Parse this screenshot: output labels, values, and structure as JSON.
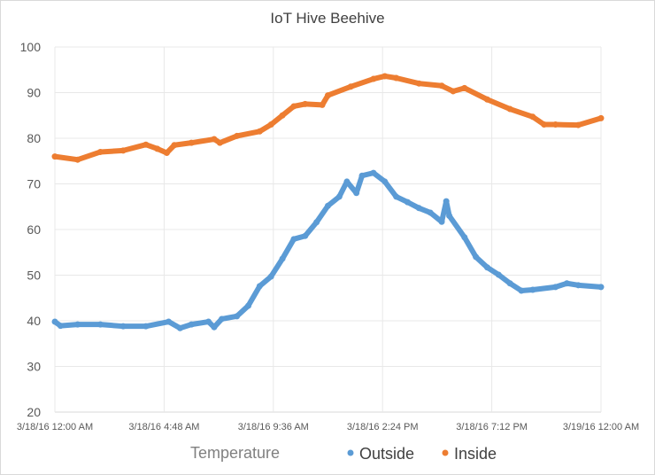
{
  "chart_data": {
    "type": "scatter",
    "title": "IoT Hive Beehive",
    "xlabel": "",
    "ylabel": "",
    "legend_title": "Temperature",
    "legend_position": "bottom",
    "grid": true,
    "ylim": [
      20,
      100
    ],
    "yticks": [
      20,
      30,
      40,
      50,
      60,
      70,
      80,
      90,
      100
    ],
    "xlim": [
      "2016-03-18T00:00",
      "2016-03-19T00:00"
    ],
    "xticks": [
      {
        "t": "2016-03-18T00:00",
        "label": "3/18/16 12:00 AM"
      },
      {
        "t": "2016-03-18T04:48",
        "label": "3/18/16 4:48 AM"
      },
      {
        "t": "2016-03-18T09:36",
        "label": "3/18/16 9:36 AM"
      },
      {
        "t": "2016-03-18T14:24",
        "label": "3/18/16 2:24 PM"
      },
      {
        "t": "2016-03-18T19:12",
        "label": "3/18/16 7:12 PM"
      },
      {
        "t": "2016-03-19T00:00",
        "label": "3/19/16 12:00 AM"
      }
    ],
    "series": [
      {
        "name": "Outside",
        "color": "#5b9bd5",
        "points": [
          [
            "2016-03-18T00:00",
            39.8
          ],
          [
            "2016-03-18T00:15",
            38.9
          ],
          [
            "2016-03-18T01:00",
            39.2
          ],
          [
            "2016-03-18T02:00",
            39.2
          ],
          [
            "2016-03-18T03:00",
            38.8
          ],
          [
            "2016-03-18T04:00",
            38.8
          ],
          [
            "2016-03-18T05:00",
            39.8
          ],
          [
            "2016-03-18T05:30",
            38.4
          ],
          [
            "2016-03-18T06:00",
            39.2
          ],
          [
            "2016-03-18T06:45",
            39.8
          ],
          [
            "2016-03-18T07:00",
            38.6
          ],
          [
            "2016-03-18T07:20",
            40.4
          ],
          [
            "2016-03-18T08:00",
            41.0
          ],
          [
            "2016-03-18T08:30",
            43.3
          ],
          [
            "2016-03-18T09:00",
            47.6
          ],
          [
            "2016-03-18T09:30",
            49.7
          ],
          [
            "2016-03-18T10:00",
            53.6
          ],
          [
            "2016-03-18T10:30",
            57.9
          ],
          [
            "2016-03-18T11:00",
            58.6
          ],
          [
            "2016-03-18T11:30",
            61.6
          ],
          [
            "2016-03-18T12:00",
            65.2
          ],
          [
            "2016-03-18T12:30",
            67.2
          ],
          [
            "2016-03-18T12:50",
            70.5
          ],
          [
            "2016-03-18T13:15",
            68.0
          ],
          [
            "2016-03-18T13:30",
            71.8
          ],
          [
            "2016-03-18T14:00",
            72.4
          ],
          [
            "2016-03-18T14:30",
            70.5
          ],
          [
            "2016-03-18T15:00",
            67.2
          ],
          [
            "2016-03-18T15:30",
            66.0
          ],
          [
            "2016-03-18T16:00",
            64.7
          ],
          [
            "2016-03-18T16:30",
            63.7
          ],
          [
            "2016-03-18T17:00",
            61.7
          ],
          [
            "2016-03-18T17:12",
            66.2
          ],
          [
            "2016-03-18T17:20",
            63.0
          ],
          [
            "2016-03-18T18:00",
            58.3
          ],
          [
            "2016-03-18T18:30",
            54.0
          ],
          [
            "2016-03-18T19:00",
            51.7
          ],
          [
            "2016-03-18T19:30",
            50.1
          ],
          [
            "2016-03-18T20:00",
            48.2
          ],
          [
            "2016-03-18T20:30",
            46.6
          ],
          [
            "2016-03-18T21:00",
            46.8
          ],
          [
            "2016-03-18T22:00",
            47.4
          ],
          [
            "2016-03-18T22:30",
            48.2
          ],
          [
            "2016-03-18T23:00",
            47.8
          ],
          [
            "2016-03-19T00:00",
            47.4
          ]
        ]
      },
      {
        "name": "Inside",
        "color": "#ed7d31",
        "points": [
          [
            "2016-03-18T00:00",
            76.0
          ],
          [
            "2016-03-18T01:00",
            75.3
          ],
          [
            "2016-03-18T02:00",
            77.0
          ],
          [
            "2016-03-18T03:00",
            77.3
          ],
          [
            "2016-03-18T04:00",
            78.6
          ],
          [
            "2016-03-18T04:30",
            77.7
          ],
          [
            "2016-03-18T04:55",
            76.8
          ],
          [
            "2016-03-18T05:15",
            78.5
          ],
          [
            "2016-03-18T06:00",
            79.0
          ],
          [
            "2016-03-18T07:00",
            79.8
          ],
          [
            "2016-03-18T07:15",
            79.0
          ],
          [
            "2016-03-18T08:00",
            80.5
          ],
          [
            "2016-03-18T09:00",
            81.5
          ],
          [
            "2016-03-18T09:30",
            83.0
          ],
          [
            "2016-03-18T10:00",
            85.0
          ],
          [
            "2016-03-18T10:30",
            87.0
          ],
          [
            "2016-03-18T11:00",
            87.5
          ],
          [
            "2016-03-18T11:45",
            87.3
          ],
          [
            "2016-03-18T12:00",
            89.4
          ],
          [
            "2016-03-18T13:00",
            91.3
          ],
          [
            "2016-03-18T14:00",
            93.0
          ],
          [
            "2016-03-18T14:30",
            93.6
          ],
          [
            "2016-03-18T15:00",
            93.2
          ],
          [
            "2016-03-18T16:00",
            92.0
          ],
          [
            "2016-03-18T17:00",
            91.5
          ],
          [
            "2016-03-18T17:30",
            90.3
          ],
          [
            "2016-03-18T18:00",
            91.0
          ],
          [
            "2016-03-18T19:00",
            88.5
          ],
          [
            "2016-03-18T20:00",
            86.4
          ],
          [
            "2016-03-18T21:00",
            84.7
          ],
          [
            "2016-03-18T21:30",
            83.0
          ],
          [
            "2016-03-18T22:00",
            83.0
          ],
          [
            "2016-03-18T23:00",
            82.9
          ],
          [
            "2016-03-19T00:00",
            84.4
          ]
        ]
      }
    ]
  }
}
